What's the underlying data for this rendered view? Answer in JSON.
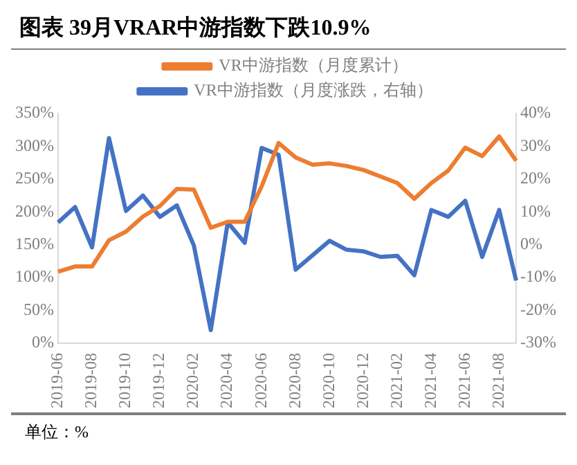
{
  "chart_data": {
    "type": "line",
    "title": "图表 39月VRAR中游指数下跌10.9%",
    "annotations": [
      "单位：%"
    ],
    "categories": [
      "2019-06",
      null,
      "2019-08",
      null,
      "2019-10",
      null,
      "2019-12",
      null,
      "2020-02",
      null,
      "2020-04",
      null,
      "2020-06",
      null,
      "2020-08",
      null,
      "2020-10",
      null,
      "2020-12",
      null,
      "2021-02",
      null,
      "2021-04",
      null,
      "2021-06",
      null,
      "2021-08",
      null
    ],
    "series": [
      {
        "name": "VR中游指数（月度累计）",
        "color": "#ed7d31",
        "values": [
          109,
          117,
          117,
          157,
          170,
          193,
          209,
          235,
          234,
          176,
          185,
          185,
          239,
          305,
          283,
          272,
          274,
          270,
          264,
          254,
          244,
          220,
          244,
          263,
          298,
          285,
          315,
          278
        ]
      },
      {
        "name": "VR中游指数（月度涨跌，右轴）",
        "color": "#4472c4",
        "axis": "y2",
        "values": [
          6.8,
          11.5,
          -0.8,
          32.5,
          10.3,
          15,
          8.5,
          12,
          -0.2,
          -26,
          6.8,
          0.6,
          29.5,
          27.4,
          -7.6,
          -3.2,
          1.2,
          -1.5,
          -2,
          -3.7,
          -3.4,
          -9.3,
          10.6,
          8.5,
          13.4,
          -3.7,
          10.6,
          -10.9
        ]
      }
    ],
    "ylim": [
      0,
      350
    ],
    "yticks": [
      {
        "value": 0,
        "label": "0%"
      },
      {
        "value": 50,
        "label": "50%"
      },
      {
        "value": 100,
        "label": "100%"
      },
      {
        "value": 150,
        "label": "150%"
      },
      {
        "value": 200,
        "label": "200%"
      },
      {
        "value": 250,
        "label": "250%"
      },
      {
        "value": 300,
        "label": "300%"
      },
      {
        "value": 350,
        "label": "350%"
      }
    ],
    "y2lim": [
      -30,
      40
    ],
    "y2ticks": [
      {
        "value": -30,
        "label": "-30%"
      },
      {
        "value": -20,
        "label": "-20%"
      },
      {
        "value": -10,
        "label": "-10%"
      },
      {
        "value": 0,
        "label": "0%"
      },
      {
        "value": 10,
        "label": "10%"
      },
      {
        "value": 20,
        "label": "20%"
      },
      {
        "value": 30,
        "label": "30%"
      },
      {
        "value": 40,
        "label": "40%"
      }
    ],
    "legend": "top",
    "grid": false,
    "marker": "none",
    "line_style": "solid"
  }
}
